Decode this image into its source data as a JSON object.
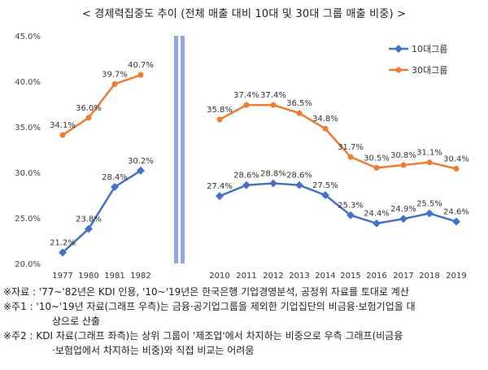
{
  "title": "< 경제력집중도 추이 (전체 매출 대비 10대 및 30대 그룹 매출 비중) >",
  "chart_data": {
    "type": "line",
    "title": "< 경제력집중도 추이 (전체 매출 대비 10대 및 30대 그룹 매출 비중) >",
    "ylim": [
      20.0,
      45.0
    ],
    "y_ticks": [
      "20.0%",
      "25.0%",
      "30.0%",
      "35.0%",
      "40.0%",
      "45.0%"
    ],
    "y_tick_values": [
      20,
      25,
      30,
      35,
      40,
      45
    ],
    "grid": false,
    "legend_position": "top-right",
    "legend": [
      "10대그룹",
      "30대그룹"
    ],
    "colors": {
      "group10": "#4472C4",
      "group30": "#ED7D31",
      "divider": "#8FAADC"
    },
    "panels": [
      {
        "x": [
          "1977",
          "1980",
          "1981",
          "1982"
        ],
        "series": [
          {
            "name": "30대그룹",
            "values": [
              34.1,
              36.0,
              39.7,
              40.7
            ],
            "labels": [
              "34.1%",
              "36.0%",
              "39.7%",
              "40.7%"
            ]
          },
          {
            "name": "10대그룹",
            "values": [
              21.2,
              23.8,
              28.4,
              30.2
            ],
            "labels": [
              "21.2%",
              "23.8%",
              "28.4%",
              "30.2%"
            ]
          }
        ]
      },
      {
        "x": [
          "2010",
          "2011",
          "2012",
          "2013",
          "2014",
          "2015",
          "2016",
          "2017",
          "2018",
          "2019"
        ],
        "series": [
          {
            "name": "30대그룹",
            "values": [
              35.8,
              37.4,
              37.4,
              36.5,
              34.8,
              31.7,
              30.5,
              30.8,
              31.1,
              30.4
            ],
            "labels": [
              "35.8%",
              "37.4%",
              "37.4%",
              "36.5%",
              "34.8%",
              "31.7%",
              "30.5%",
              "30.8%",
              "31.1%",
              "30.4%"
            ]
          },
          {
            "name": "10대그룹",
            "values": [
              27.4,
              28.6,
              28.8,
              28.6,
              27.5,
              25.3,
              24.4,
              24.9,
              25.5,
              24.6
            ],
            "labels": [
              "27.4%",
              "28.6%",
              "28.8%",
              "28.6%",
              "27.5%",
              "25.3%",
              "24.4%",
              "24.9%",
              "25.5%",
              "24.6%"
            ]
          }
        ]
      }
    ]
  },
  "notes": {
    "line1": "※자료 : '77~'82년은 KDI 인용, '10~'19년은 한국은행 기업경영분석, 공정위 자료를 토대로 계산",
    "line2": "※주1 : '10~'19년 자료(그래프 우측)는 금융·공기업그룹을 제외한 기업집단의 비금융·보험기업을 대",
    "line2b": "상으로 산출",
    "line3": "※주2 : KDI 자료(그래프 좌측)는 상위 그룹이 '제조업'에서 차지하는 비중으로 우측 그래프(비금융",
    "line3b": "·보험업에서 차지하는 비중)와 직접 비교는 어려움"
  }
}
